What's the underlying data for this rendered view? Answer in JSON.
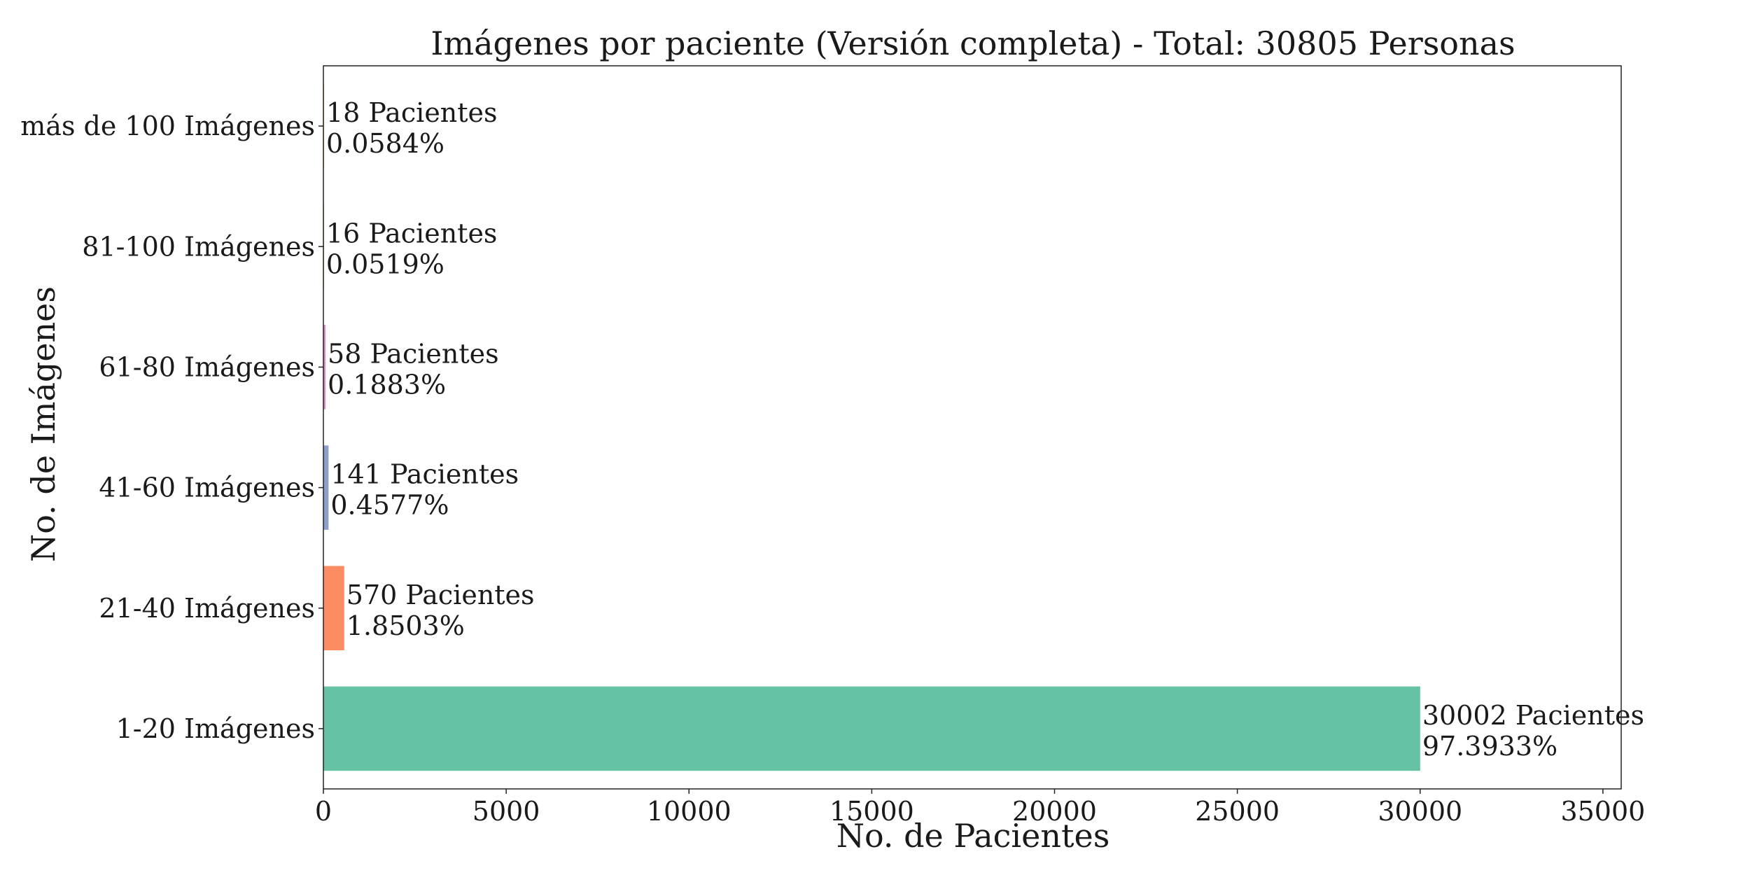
{
  "chart_data": {
    "type": "bar",
    "orientation": "horizontal",
    "title": "Imágenes por paciente (Versión completa) - Total: 30805 Personas",
    "xlabel": "No. de Pacientes",
    "ylabel": "No. de Imágenes",
    "xlim": [
      0,
      35500
    ],
    "xticks": [
      0,
      5000,
      10000,
      15000,
      20000,
      25000,
      30000,
      35000
    ],
    "categories": [
      "1-20 Imágenes",
      "21-40 Imágenes",
      "41-60 Imágenes",
      "61-80 Imágenes",
      "81-100 Imágenes",
      "más de 100 Imágenes"
    ],
    "values": [
      30002,
      570,
      141,
      58,
      16,
      18
    ],
    "labels": [
      {
        "count": "30002 Pacientes",
        "percent": "97.3933%"
      },
      {
        "count": "570 Pacientes",
        "percent": "1.8503%"
      },
      {
        "count": "141 Pacientes",
        "percent": "0.4577%"
      },
      {
        "count": "58 Pacientes",
        "percent": "0.1883%"
      },
      {
        "count": "16 Pacientes",
        "percent": "0.0519%"
      },
      {
        "count": "18 Pacientes",
        "percent": "0.0584%"
      }
    ],
    "colors": [
      "#66c2a5",
      "#fc8d62",
      "#8da0cb",
      "#e78ac3",
      "#a6d854",
      "#ffd92f"
    ],
    "grid": false,
    "legend": "none"
  }
}
